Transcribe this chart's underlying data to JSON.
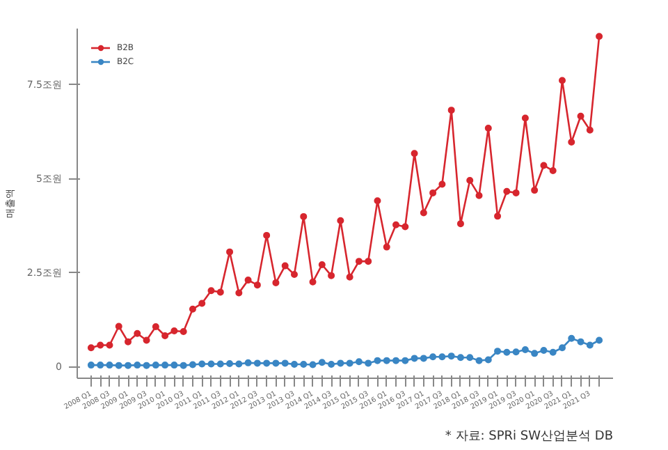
{
  "chart_data": {
    "type": "line",
    "ylabel": "매출액",
    "categories": [
      "2008 Q1",
      null,
      "2008 Q3",
      null,
      "2009 Q1",
      null,
      "2009 Q3",
      null,
      "2010 Q1",
      null,
      "2010 Q3",
      null,
      "2011 Q1",
      null,
      "2011 Q3",
      null,
      "2012 Q1",
      null,
      "2012 Q3",
      null,
      "2013 Q1",
      null,
      "2013 Q3",
      null,
      "2014 Q1",
      null,
      "2014 Q3",
      null,
      "2015 Q1",
      null,
      "2015 Q3",
      null,
      "2016 Q1",
      null,
      "2016 Q3",
      null,
      "2017 Q1",
      null,
      "2017 Q3",
      null,
      "2018 Q1",
      null,
      "2018 Q3",
      null,
      "2019 Q1",
      null,
      "2019 Q3",
      null,
      "2020 Q1",
      null,
      "2020 Q3",
      null,
      "2021 Q1",
      null,
      "2021 Q3",
      null
    ],
    "series": [
      {
        "name": "B2B",
        "color": "#d7262e",
        "values": [
          0.51,
          0.58,
          0.58,
          1.08,
          0.67,
          0.89,
          0.71,
          1.07,
          0.83,
          0.96,
          0.94,
          1.54,
          1.69,
          2.03,
          1.99,
          3.06,
          1.97,
          2.31,
          2.18,
          3.5,
          2.24,
          2.69,
          2.46,
          4.0,
          2.26,
          2.72,
          2.43,
          3.89,
          2.39,
          2.81,
          2.81,
          4.42,
          3.19,
          3.78,
          3.73,
          5.68,
          4.1,
          4.63,
          4.86,
          6.83,
          3.81,
          4.96,
          4.56,
          6.35,
          4.01,
          4.67,
          4.63,
          6.62,
          4.7,
          5.36,
          5.22,
          7.62,
          5.98,
          6.67,
          6.3,
          8.79
        ]
      },
      {
        "name": "B2C",
        "color": "#3a86c4",
        "values": [
          0.05,
          0.05,
          0.05,
          0.04,
          0.04,
          0.05,
          0.04,
          0.05,
          0.05,
          0.05,
          0.04,
          0.06,
          0.08,
          0.08,
          0.08,
          0.09,
          0.08,
          0.11,
          0.1,
          0.1,
          0.1,
          0.1,
          0.07,
          0.07,
          0.06,
          0.12,
          0.07,
          0.1,
          0.1,
          0.14,
          0.1,
          0.17,
          0.17,
          0.17,
          0.17,
          0.23,
          0.23,
          0.27,
          0.27,
          0.29,
          0.25,
          0.25,
          0.17,
          0.19,
          0.42,
          0.39,
          0.4,
          0.46,
          0.36,
          0.44,
          0.39,
          0.51,
          0.76,
          0.67,
          0.58,
          0.71
        ]
      }
    ],
    "ylim": [
      -0.3,
      9.0
    ],
    "yticks": [
      0,
      {
        "value": 2.5,
        "label": "2.5조원"
      },
      {
        "value": 5,
        "label": "5조원"
      },
      {
        "value": 7.5,
        "label": "7.5조원"
      }
    ],
    "grid": false,
    "legend": "top left",
    "marker": "circle",
    "line_style": "solid",
    "annotations": [
      "* 자료: SPRi SW산업분석 DB"
    ]
  }
}
